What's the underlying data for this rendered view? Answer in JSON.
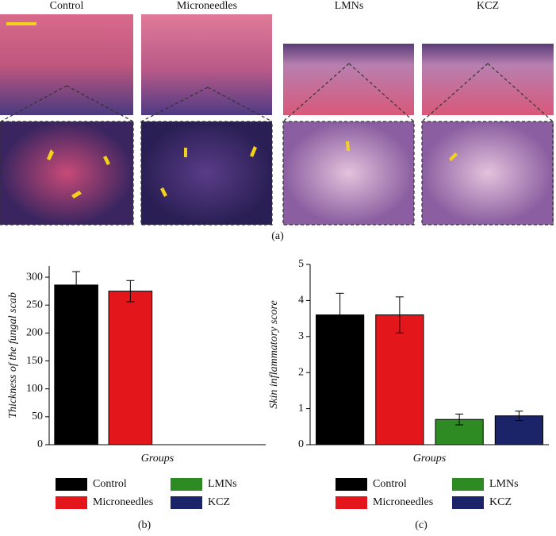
{
  "figure": {
    "image_labels": [
      "Control",
      "Microneedles",
      "LMNs",
      "KCZ"
    ],
    "panel_labels": [
      "(a)",
      "(b)",
      "(c)"
    ]
  },
  "chart_data": [
    {
      "type": "bar",
      "y_label": "Thickness of the fungal scab",
      "x_label": "Groups",
      "categories": [
        "Control",
        "Microneedles",
        "LMNs",
        "KCZ"
      ],
      "colors": [
        "#000000",
        "#e3161b",
        "#2e8a22",
        "#1b2468"
      ],
      "values": [
        286,
        275,
        0,
        0
      ],
      "errors": [
        24,
        19,
        0,
        0
      ],
      "ylim": [
        0,
        320
      ],
      "yticks": [
        0,
        50,
        100,
        150,
        200,
        250,
        300
      ]
    },
    {
      "type": "bar",
      "y_label": "Skin inflammatory score",
      "x_label": "Groups",
      "categories": [
        "Control",
        "Microneedles",
        "LMNs",
        "KCZ"
      ],
      "colors": [
        "#000000",
        "#e3161b",
        "#2e8a22",
        "#1b2468"
      ],
      "values": [
        3.6,
        3.6,
        0.7,
        0.8
      ],
      "errors": [
        0.6,
        0.5,
        0.15,
        0.13
      ],
      "ylim": [
        0,
        5
      ],
      "yticks": [
        0,
        1,
        2,
        3,
        4,
        5
      ]
    }
  ]
}
